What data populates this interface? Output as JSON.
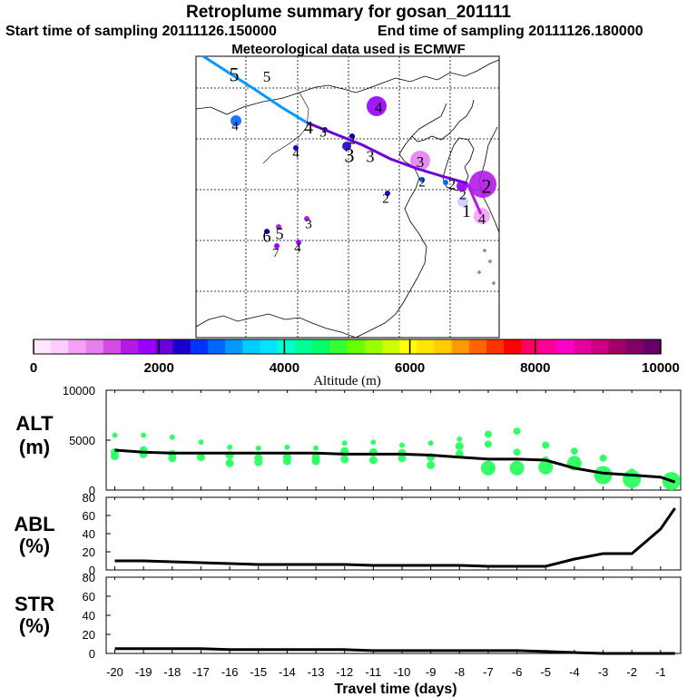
{
  "header": {
    "title": "Retroplume summary for gosan_201111",
    "start_label": "Start time of sampling 20111126.150000",
    "end_label": "End time of sampling 20111126.180000",
    "met_label": "Meteorological data used is ECMWF"
  },
  "map": {
    "trajectory_labels": [
      {
        "text": "5",
        "color": "#000000"
      },
      {
        "text": "5",
        "color": "#000000"
      },
      {
        "text": "4",
        "color": "#000000"
      },
      {
        "text": "4",
        "color": "#000000"
      },
      {
        "text": "3",
        "color": "#000000"
      },
      {
        "text": "3",
        "color": "#000000"
      },
      {
        "text": "2",
        "color": "#000000"
      },
      {
        "text": "2",
        "color": "#000000"
      },
      {
        "text": "1",
        "color": "#000000"
      },
      {
        "text": "4",
        "color": "#000000"
      },
      {
        "text": "4",
        "color": "#000000"
      },
      {
        "text": "3",
        "color": "#000000"
      },
      {
        "text": "3",
        "color": "#000000"
      },
      {
        "text": "2",
        "color": "#000000"
      },
      {
        "text": "2",
        "color": "#000000"
      },
      {
        "text": "2",
        "color": "#000000"
      },
      {
        "text": "6",
        "color": "#000000"
      },
      {
        "text": "5",
        "color": "#000000"
      },
      {
        "text": "7",
        "color": "#000000"
      },
      {
        "text": "4",
        "color": "#000000"
      },
      {
        "text": "3",
        "color": "#000000"
      },
      {
        "text": "4",
        "color": "#000000"
      },
      {
        "text": "2",
        "color": "#000000"
      },
      {
        "text": "4",
        "color": "#000000"
      },
      {
        "text": "3",
        "color": "#000000"
      }
    ]
  },
  "colorbar": {
    "title": "Altitude (m)",
    "ticks": [
      "0",
      "2000",
      "4000",
      "6000",
      "8000",
      "10000"
    ],
    "range": [
      0,
      10000
    ],
    "colors": [
      "#ffe6ff",
      "#ffccff",
      "#f5a0f5",
      "#e680f0",
      "#d24de6",
      "#b31ae6",
      "#9900ff",
      "#6b00d9",
      "#1a00cc",
      "#0033ff",
      "#0066ff",
      "#0099ff",
      "#00ccff",
      "#00e5ff",
      "#00ffcc",
      "#00ff99",
      "#00ff66",
      "#33ff33",
      "#66ff00",
      "#99ff00",
      "#ccff00",
      "#ffff00",
      "#ffe600",
      "#ffcc00",
      "#ff9900",
      "#ff6600",
      "#ff3300",
      "#ff0000",
      "#ff0066",
      "#ff0099",
      "#ff00cc",
      "#e6009e",
      "#cc0080",
      "#a30066",
      "#800066",
      "#660066"
    ]
  },
  "chart_data": [
    {
      "type": "line",
      "panel": "ALT",
      "ylabel": "ALT\n(m)",
      "ylabel_top": "ALT",
      "ylabel_bottom": "(m)",
      "ylim": [
        0,
        10000
      ],
      "yticks": [
        "10000",
        "5000",
        "0"
      ],
      "x": [
        -20,
        -19,
        -18,
        -17,
        -16,
        -15,
        -14,
        -13,
        -12,
        -11,
        -10,
        -9,
        -8,
        -7,
        -6,
        -5,
        -4,
        -3,
        -2,
        -1,
        -0.5
      ],
      "values": [
        4000,
        3800,
        3700,
        3700,
        3700,
        3700,
        3700,
        3700,
        3600,
        3600,
        3600,
        3500,
        3300,
        3100,
        3100,
        3000,
        2200,
        1700,
        1500,
        1300,
        800
      ],
      "cluster_values": [
        [
          5500,
          3800,
          3400
        ],
        [
          5500,
          4000,
          3600
        ],
        [
          5300,
          3600,
          3200
        ],
        [
          4800,
          3300
        ],
        [
          4300,
          3500,
          2700
        ],
        [
          4200,
          3200,
          2800
        ],
        [
          4300,
          3300,
          2900
        ],
        [
          4200,
          3300,
          2900
        ],
        [
          4700,
          3900,
          3100
        ],
        [
          4800,
          3800,
          3000
        ],
        [
          4500,
          3700,
          3200
        ],
        [
          4700,
          3300,
          2500
        ],
        [
          5100,
          4400,
          3600
        ],
        [
          5600,
          4600,
          2200
        ],
        [
          5900,
          3800,
          2200
        ],
        [
          4500,
          3000,
          2300
        ],
        [
          3900,
          2700
        ],
        [
          3200,
          1500
        ],
        [
          1800,
          1100
        ],
        [
          1200,
          900
        ]
      ]
    },
    {
      "type": "line",
      "panel": "ABL",
      "ylabel_top": "ABL",
      "ylabel_bottom": "(%)",
      "ylim": [
        0,
        80
      ],
      "yticks": [
        "80",
        "60",
        "40",
        "20",
        "0"
      ],
      "x": [
        -20,
        -19,
        -18,
        -17,
        -16,
        -15,
        -14,
        -13,
        -12,
        -11,
        -10,
        -9,
        -8,
        -7,
        -6,
        -5,
        -4,
        -3,
        -2,
        -1,
        -0.5
      ],
      "values": [
        10,
        10,
        9,
        8,
        7,
        6,
        6,
        6,
        6,
        5,
        5,
        5,
        5,
        4,
        4,
        4,
        12,
        18,
        18,
        45,
        68
      ]
    },
    {
      "type": "line",
      "panel": "STR",
      "ylabel_top": "STR",
      "ylabel_bottom": "(%)",
      "ylim": [
        0,
        80
      ],
      "yticks": [
        "80",
        "60",
        "40",
        "20",
        "0"
      ],
      "x": [
        -20,
        -19,
        -18,
        -17,
        -16,
        -15,
        -14,
        -13,
        -12,
        -11,
        -10,
        -9,
        -8,
        -7,
        -6,
        -5,
        -4,
        -3,
        -2,
        -1,
        -0.5
      ],
      "values": [
        5,
        5,
        5,
        5,
        4,
        4,
        4,
        4,
        4,
        3,
        3,
        3,
        3,
        3,
        3,
        2,
        1,
        0,
        0,
        0,
        0
      ]
    }
  ],
  "xaxis": {
    "title": "Travel time (days)",
    "ticks": [
      "-20",
      "-19",
      "-18",
      "-17",
      "-16",
      "-15",
      "-14",
      "-13",
      "-12",
      "-11",
      "-10",
      "-9",
      "-8",
      "-7",
      "-6",
      "-5",
      "-4",
      "-3",
      "-2",
      "-1"
    ]
  }
}
